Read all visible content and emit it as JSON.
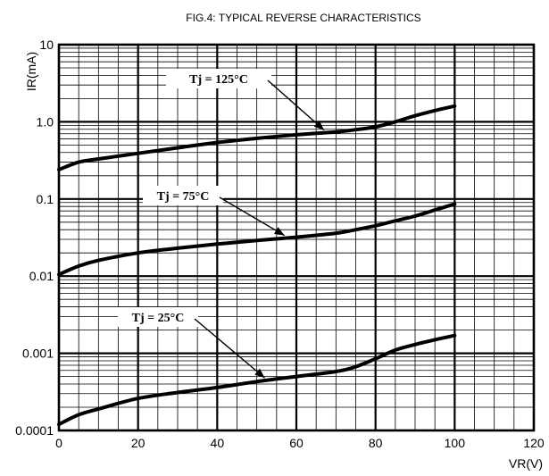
{
  "chart_data": {
    "type": "line",
    "title": "FIG.4: TYPICAL REVERSE CHARACTERISTICS",
    "xlabel": "VR(V)",
    "ylabel": "IR(mA)",
    "xlim": [
      0,
      120
    ],
    "ylim": [
      0.0001,
      10
    ],
    "yscale": "log",
    "grid": true,
    "x_ticks": [
      0,
      20,
      40,
      60,
      80,
      100,
      120
    ],
    "x_tick_labels": [
      "0",
      "20",
      "40",
      "60",
      "80",
      "100",
      "120"
    ],
    "y_ticks": [
      0.0001,
      0.001,
      0.01,
      0.1,
      1.0,
      10
    ],
    "y_tick_labels": [
      "0.0001",
      "0.001",
      "0.01",
      "0.1",
      "1.0",
      "10"
    ],
    "series": [
      {
        "name": "Tj = 125°C",
        "x": [
          0,
          5,
          10,
          20,
          30,
          40,
          50,
          60,
          70,
          75,
          80,
          85,
          90,
          95,
          100
        ],
        "y": [
          0.24,
          0.3,
          0.33,
          0.39,
          0.46,
          0.54,
          0.61,
          0.68,
          0.74,
          0.79,
          0.86,
          1.0,
          1.2,
          1.4,
          1.6
        ],
        "label_text": "Tj = 125°C",
        "arrow_to_x": 67
      },
      {
        "name": "Tj = 75°C",
        "x": [
          0,
          5,
          10,
          20,
          30,
          40,
          50,
          60,
          70,
          75,
          80,
          85,
          90,
          95,
          100
        ],
        "y": [
          0.0105,
          0.0135,
          0.016,
          0.02,
          0.023,
          0.026,
          0.029,
          0.032,
          0.036,
          0.04,
          0.045,
          0.052,
          0.06,
          0.072,
          0.086
        ],
        "label_text": "Tj = 75°C",
        "arrow_to_x": 57
      },
      {
        "name": "Tj = 25°C",
        "x": [
          0,
          5,
          10,
          20,
          30,
          40,
          50,
          60,
          70,
          75,
          80,
          85,
          90,
          95,
          100
        ],
        "y": [
          0.00012,
          0.00016,
          0.00019,
          0.00026,
          0.00031,
          0.00036,
          0.00043,
          0.0005,
          0.00058,
          0.00067,
          0.00085,
          0.0011,
          0.0013,
          0.0015,
          0.0017
        ],
        "label_text": "Tj = 25°C",
        "arrow_to_x": 52
      }
    ]
  }
}
